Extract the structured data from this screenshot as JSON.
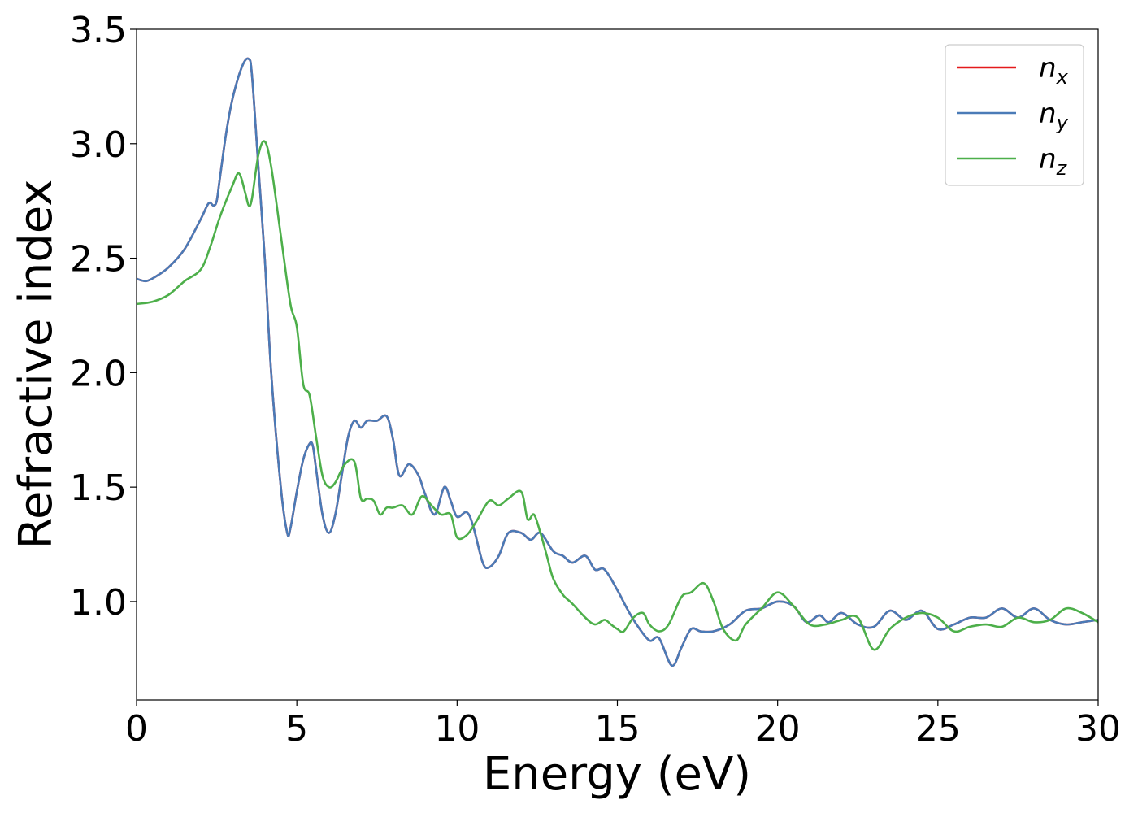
{
  "chart_data": {
    "type": "line",
    "xlabel": "Energy (eV)",
    "ylabel": "Refractive index",
    "xlim": [
      0,
      30
    ],
    "ylim": [
      0.57,
      3.5
    ],
    "xticks": [
      0,
      5,
      10,
      15,
      20,
      25,
      30
    ],
    "yticks": [
      1.0,
      1.5,
      2.0,
      2.5,
      3.0,
      3.5
    ],
    "xtick_labels": [
      "0",
      "5",
      "10",
      "15",
      "20",
      "25",
      "30"
    ],
    "ytick_labels": [
      "1.0",
      "1.5",
      "2.0",
      "2.5",
      "3.0",
      "3.5"
    ],
    "grid": false,
    "legend_position": "top-right",
    "series": [
      {
        "name": "n_x",
        "label_main": "n",
        "label_sub": "x",
        "color": "#e41a1c",
        "x": [
          0,
          0.3,
          0.6,
          1.0,
          1.5,
          2.0,
          2.25,
          2.4,
          2.5,
          2.6,
          2.8,
          3.0,
          3.3,
          3.5,
          3.6,
          3.8,
          4.0,
          4.2,
          4.5,
          4.7,
          4.8,
          5.0,
          5.2,
          5.4,
          5.5,
          5.6,
          5.8,
          6.0,
          6.2,
          6.4,
          6.6,
          6.8,
          7.0,
          7.2,
          7.5,
          7.8,
          8.0,
          8.2,
          8.5,
          8.8,
          9.0,
          9.3,
          9.6,
          9.8,
          10.0,
          10.3,
          10.5,
          10.8,
          11.0,
          11.3,
          11.6,
          12.0,
          12.3,
          12.6,
          13.0,
          13.3,
          13.6,
          14.0,
          14.3,
          14.6,
          15.0,
          15.3,
          15.6,
          16.0,
          16.3,
          16.7,
          17.0,
          17.3,
          17.6,
          18.0,
          18.5,
          19.0,
          19.5,
          20.0,
          20.5,
          20.9,
          21.3,
          21.6,
          22.0,
          22.5,
          23.0,
          23.5,
          24.0,
          24.5,
          25.0,
          25.5,
          26.0,
          26.5,
          27.0,
          27.5,
          28.0,
          28.5,
          29.0,
          29.5,
          30.0
        ],
        "y": [
          2.41,
          2.4,
          2.42,
          2.46,
          2.54,
          2.67,
          2.74,
          2.73,
          2.75,
          2.85,
          3.05,
          3.2,
          3.34,
          3.37,
          3.3,
          2.9,
          2.5,
          2.0,
          1.5,
          1.3,
          1.32,
          1.48,
          1.62,
          1.69,
          1.68,
          1.58,
          1.38,
          1.3,
          1.38,
          1.55,
          1.72,
          1.79,
          1.76,
          1.79,
          1.79,
          1.81,
          1.71,
          1.55,
          1.6,
          1.55,
          1.47,
          1.38,
          1.5,
          1.44,
          1.37,
          1.39,
          1.33,
          1.17,
          1.15,
          1.2,
          1.3,
          1.3,
          1.27,
          1.3,
          1.22,
          1.2,
          1.17,
          1.2,
          1.14,
          1.14,
          1.05,
          0.97,
          0.9,
          0.83,
          0.84,
          0.72,
          0.8,
          0.88,
          0.87,
          0.87,
          0.9,
          0.96,
          0.97,
          1.0,
          0.98,
          0.91,
          0.94,
          0.91,
          0.95,
          0.9,
          0.89,
          0.96,
          0.92,
          0.96,
          0.88,
          0.9,
          0.93,
          0.93,
          0.97,
          0.93,
          0.97,
          0.92,
          0.9,
          0.91,
          0.92
        ]
      },
      {
        "name": "n_y",
        "label_main": "n",
        "label_sub": "y",
        "color": "#4a7bb7",
        "x": [
          0,
          0.3,
          0.6,
          1.0,
          1.5,
          2.0,
          2.25,
          2.4,
          2.5,
          2.6,
          2.8,
          3.0,
          3.3,
          3.5,
          3.6,
          3.8,
          4.0,
          4.2,
          4.5,
          4.7,
          4.8,
          5.0,
          5.2,
          5.4,
          5.5,
          5.6,
          5.8,
          6.0,
          6.2,
          6.4,
          6.6,
          6.8,
          7.0,
          7.2,
          7.5,
          7.8,
          8.0,
          8.2,
          8.5,
          8.8,
          9.0,
          9.3,
          9.6,
          9.8,
          10.0,
          10.3,
          10.5,
          10.8,
          11.0,
          11.3,
          11.6,
          12.0,
          12.3,
          12.6,
          13.0,
          13.3,
          13.6,
          14.0,
          14.3,
          14.6,
          15.0,
          15.3,
          15.6,
          16.0,
          16.3,
          16.7,
          17.0,
          17.3,
          17.6,
          18.0,
          18.5,
          19.0,
          19.5,
          20.0,
          20.5,
          20.9,
          21.3,
          21.6,
          22.0,
          22.5,
          23.0,
          23.5,
          24.0,
          24.5,
          25.0,
          25.5,
          26.0,
          26.5,
          27.0,
          27.5,
          28.0,
          28.5,
          29.0,
          29.5,
          30.0
        ],
        "y": [
          2.41,
          2.4,
          2.42,
          2.46,
          2.54,
          2.67,
          2.74,
          2.73,
          2.75,
          2.85,
          3.05,
          3.2,
          3.34,
          3.37,
          3.3,
          2.9,
          2.5,
          2.0,
          1.5,
          1.3,
          1.32,
          1.48,
          1.62,
          1.69,
          1.68,
          1.58,
          1.38,
          1.3,
          1.38,
          1.55,
          1.72,
          1.79,
          1.76,
          1.79,
          1.79,
          1.81,
          1.71,
          1.55,
          1.6,
          1.55,
          1.47,
          1.38,
          1.5,
          1.44,
          1.37,
          1.39,
          1.33,
          1.17,
          1.15,
          1.2,
          1.3,
          1.3,
          1.27,
          1.3,
          1.22,
          1.2,
          1.17,
          1.2,
          1.14,
          1.14,
          1.05,
          0.97,
          0.9,
          0.83,
          0.84,
          0.72,
          0.8,
          0.88,
          0.87,
          0.87,
          0.9,
          0.96,
          0.97,
          1.0,
          0.98,
          0.91,
          0.94,
          0.91,
          0.95,
          0.9,
          0.89,
          0.96,
          0.92,
          0.96,
          0.88,
          0.9,
          0.93,
          0.93,
          0.97,
          0.93,
          0.97,
          0.92,
          0.9,
          0.91,
          0.92
        ]
      },
      {
        "name": "n_z",
        "label_main": "n",
        "label_sub": "z",
        "color": "#4daf4a",
        "x": [
          0,
          0.5,
          1.0,
          1.5,
          2.0,
          2.3,
          2.6,
          3.0,
          3.2,
          3.4,
          3.5,
          3.6,
          3.8,
          4.0,
          4.2,
          4.5,
          4.8,
          5.0,
          5.2,
          5.4,
          5.6,
          5.8,
          6.0,
          6.2,
          6.5,
          6.8,
          7.0,
          7.2,
          7.4,
          7.6,
          7.8,
          8.0,
          8.3,
          8.6,
          8.9,
          9.2,
          9.5,
          9.8,
          10.0,
          10.3,
          10.6,
          11.0,
          11.3,
          11.6,
          12.0,
          12.2,
          12.4,
          12.6,
          12.8,
          13.0,
          13.3,
          13.6,
          14.0,
          14.3,
          14.6,
          14.8,
          15.0,
          15.2,
          15.5,
          15.8,
          16.0,
          16.3,
          16.6,
          17.0,
          17.3,
          17.7,
          18.0,
          18.3,
          18.7,
          19.0,
          19.5,
          20.0,
          20.5,
          21.0,
          21.5,
          22.0,
          22.5,
          23.0,
          23.5,
          24.0,
          24.5,
          25.0,
          25.5,
          26.0,
          26.5,
          27.0,
          27.5,
          28.0,
          28.5,
          29.0,
          29.5,
          30.0
        ],
        "y": [
          2.3,
          2.31,
          2.34,
          2.4,
          2.45,
          2.55,
          2.68,
          2.82,
          2.87,
          2.78,
          2.73,
          2.76,
          2.95,
          3.01,
          2.9,
          2.6,
          2.3,
          2.2,
          1.95,
          1.9,
          1.72,
          1.55,
          1.5,
          1.52,
          1.6,
          1.61,
          1.45,
          1.45,
          1.44,
          1.38,
          1.41,
          1.41,
          1.42,
          1.38,
          1.46,
          1.42,
          1.38,
          1.38,
          1.28,
          1.29,
          1.35,
          1.44,
          1.42,
          1.45,
          1.48,
          1.36,
          1.38,
          1.3,
          1.2,
          1.1,
          1.03,
          0.99,
          0.93,
          0.9,
          0.92,
          0.9,
          0.88,
          0.87,
          0.93,
          0.95,
          0.9,
          0.87,
          0.9,
          1.02,
          1.04,
          1.08,
          1.0,
          0.88,
          0.83,
          0.9,
          0.97,
          1.04,
          0.98,
          0.9,
          0.9,
          0.92,
          0.93,
          0.79,
          0.88,
          0.93,
          0.95,
          0.93,
          0.87,
          0.89,
          0.9,
          0.89,
          0.93,
          0.91,
          0.92,
          0.97,
          0.95,
          0.91
        ]
      }
    ]
  }
}
